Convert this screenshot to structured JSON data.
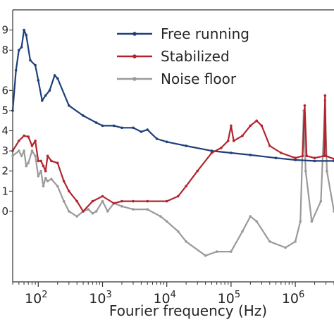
{
  "chart_data": {
    "type": "line",
    "title": "",
    "xlabel": "Fourier frequency (Hz)",
    "ylabel": "",
    "x_scale": "log",
    "xlim": [
      40,
      4000000
    ],
    "ylim": [
      9.45,
      9.72
    ],
    "grid": false,
    "legend_position": "top-right",
    "x_ticks": [
      {
        "value": 100,
        "base": "10",
        "exp": "2"
      },
      {
        "value": 1000,
        "base": "10",
        "exp": "3"
      },
      {
        "value": 10000,
        "base": "10",
        "exp": "4"
      },
      {
        "value": 100000,
        "base": "10",
        "exp": "5"
      },
      {
        "value": 1000000,
        "base": "10",
        "exp": "6"
      }
    ],
    "y_ticks": [
      {
        "value": 9.7,
        "label": "9"
      },
      {
        "value": 9.68,
        "label": "8"
      },
      {
        "value": 9.64,
        "label": "6"
      },
      {
        "value": 9.62,
        "label": "5"
      },
      {
        "value": 9.6,
        "label": "4"
      },
      {
        "value": 9.58,
        "label": "3"
      },
      {
        "value": 9.56,
        "label": "2"
      },
      {
        "value": 9.54,
        "label": "1"
      },
      {
        "value": 9.52,
        "label": "0"
      }
    ],
    "series": [
      {
        "name": "Free running",
        "color": "#1f3f78",
        "points": [
          [
            40,
            9.62
          ],
          [
            45,
            9.66
          ],
          [
            50,
            9.68
          ],
          [
            55,
            9.683
          ],
          [
            60,
            9.7
          ],
          [
            65,
            9.695
          ],
          [
            75,
            9.67
          ],
          [
            90,
            9.665
          ],
          [
            100,
            9.65
          ],
          [
            115,
            9.63
          ],
          [
            130,
            9.635
          ],
          [
            150,
            9.64
          ],
          [
            180,
            9.655
          ],
          [
            200,
            9.652
          ],
          [
            300,
            9.625
          ],
          [
            500,
            9.615
          ],
          [
            800,
            9.608
          ],
          [
            1000,
            9.605
          ],
          [
            1500,
            9.605
          ],
          [
            2000,
            9.603
          ],
          [
            3000,
            9.603
          ],
          [
            4000,
            9.599
          ],
          [
            5000,
            9.601
          ],
          [
            7000,
            9.592
          ],
          [
            10000,
            9.589
          ],
          [
            20000,
            9.585
          ],
          [
            50000,
            9.58
          ],
          [
            100000,
            9.578
          ],
          [
            200000,
            9.576
          ],
          [
            500000,
            9.573
          ],
          [
            1000000,
            9.571
          ],
          [
            2000000,
            9.57
          ],
          [
            4000000,
            9.57
          ]
        ]
      },
      {
        "name": "Stabilized",
        "color": "#b1252e",
        "points": [
          [
            40,
            9.58
          ],
          [
            50,
            9.59
          ],
          [
            60,
            9.595
          ],
          [
            70,
            9.594
          ],
          [
            80,
            9.585
          ],
          [
            90,
            9.59
          ],
          [
            100,
            9.57
          ],
          [
            110,
            9.57
          ],
          [
            120,
            9.565
          ],
          [
            130,
            9.56
          ],
          [
            140,
            9.575
          ],
          [
            160,
            9.57
          ],
          [
            200,
            9.568
          ],
          [
            250,
            9.55
          ],
          [
            300,
            9.54
          ],
          [
            400,
            9.53
          ],
          [
            500,
            9.52
          ],
          [
            700,
            9.53
          ],
          [
            1000,
            9.535
          ],
          [
            1500,
            9.528
          ],
          [
            2000,
            9.53
          ],
          [
            3000,
            9.53
          ],
          [
            5000,
            9.53
          ],
          [
            10000,
            9.53
          ],
          [
            15000,
            9.535
          ],
          [
            20000,
            9.545
          ],
          [
            30000,
            9.56
          ],
          [
            50000,
            9.578
          ],
          [
            70000,
            9.583
          ],
          [
            90000,
            9.59
          ],
          [
            100000,
            9.605
          ],
          [
            110000,
            9.59
          ],
          [
            150000,
            9.595
          ],
          [
            200000,
            9.605
          ],
          [
            250000,
            9.61
          ],
          [
            300000,
            9.605
          ],
          [
            400000,
            9.585
          ],
          [
            600000,
            9.578
          ],
          [
            1000000,
            9.573
          ],
          [
            1300000,
            9.575
          ],
          [
            1400000,
            9.625
          ],
          [
            1500000,
            9.575
          ],
          [
            2000000,
            9.573
          ],
          [
            2800000,
            9.575
          ],
          [
            2900000,
            9.635
          ],
          [
            3000000,
            9.575
          ],
          [
            4000000,
            9.572
          ]
        ]
      },
      {
        "name": "Noise floor",
        "color": "#9a9a9a",
        "points": [
          [
            40,
            9.575
          ],
          [
            50,
            9.58
          ],
          [
            55,
            9.575
          ],
          [
            60,
            9.58
          ],
          [
            65,
            9.565
          ],
          [
            70,
            9.568
          ],
          [
            80,
            9.58
          ],
          [
            90,
            9.575
          ],
          [
            100,
            9.555
          ],
          [
            110,
            9.56
          ],
          [
            120,
            9.545
          ],
          [
            130,
            9.553
          ],
          [
            140,
            9.55
          ],
          [
            160,
            9.552
          ],
          [
            200,
            9.545
          ],
          [
            250,
            9.53
          ],
          [
            300,
            9.52
          ],
          [
            400,
            9.515
          ],
          [
            500,
            9.52
          ],
          [
            600,
            9.522
          ],
          [
            700,
            9.518
          ],
          [
            800,
            9.52
          ],
          [
            1000,
            9.53
          ],
          [
            1200,
            9.52
          ],
          [
            1500,
            9.528
          ],
          [
            2000,
            9.525
          ],
          [
            3000,
            9.522
          ],
          [
            5000,
            9.522
          ],
          [
            8000,
            9.515
          ],
          [
            10000,
            9.51
          ],
          [
            15000,
            9.5
          ],
          [
            20000,
            9.49
          ],
          [
            40000,
            9.476
          ],
          [
            60000,
            9.48
          ],
          [
            100000,
            9.48
          ],
          [
            150000,
            9.5
          ],
          [
            200000,
            9.515
          ],
          [
            250000,
            9.51
          ],
          [
            400000,
            9.49
          ],
          [
            700000,
            9.484
          ],
          [
            1000000,
            9.49
          ],
          [
            1200000,
            9.51
          ],
          [
            1350000,
            9.62
          ],
          [
            1450000,
            9.56
          ],
          [
            1800000,
            9.51
          ],
          [
            2500000,
            9.53
          ],
          [
            2900000,
            9.63
          ],
          [
            3100000,
            9.56
          ],
          [
            4000000,
            9.52
          ]
        ]
      }
    ]
  }
}
